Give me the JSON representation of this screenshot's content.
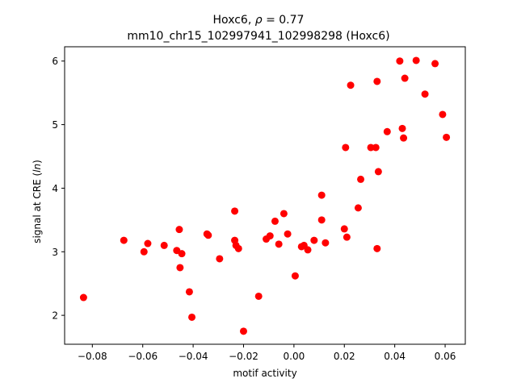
{
  "chart_data": {
    "type": "scatter",
    "title_prefix": "Hoxc6, ",
    "title_rho_symbol": "ρ",
    "title_rho_suffix": " = 0.77",
    "subtitle": "mm10_chr15_102997941_102998298 (Hoxc6)",
    "xlabel": "motif activity",
    "ylabel_prefix": "signal at CRE (",
    "ylabel_italic": "ln",
    "ylabel_suffix": ")",
    "xlim": [
      -0.091,
      0.068
    ],
    "ylim": [
      1.545,
      6.225
    ],
    "x_ticks": [
      -0.08,
      -0.06,
      -0.04,
      -0.02,
      0.0,
      0.02,
      0.04,
      0.06
    ],
    "x_tick_labels": [
      "−0.08",
      "−0.06",
      "−0.04",
      "−0.02",
      "0.00",
      "0.02",
      "0.04",
      "0.06"
    ],
    "y_ticks": [
      2,
      3,
      4,
      5,
      6
    ],
    "y_tick_labels": [
      "2",
      "3",
      "4",
      "5",
      "6"
    ],
    "grid": false,
    "legend": "none",
    "marker_color": "#ff0000",
    "x": [
      -0.0835,
      -0.0675,
      -0.0595,
      -0.058,
      -0.0515,
      -0.0465,
      -0.0455,
      -0.0452,
      -0.0445,
      -0.0415,
      -0.0405,
      -0.0345,
      -0.034,
      -0.0295,
      -0.0235,
      -0.0235,
      -0.023,
      -0.022,
      -0.02,
      -0.014,
      -0.011,
      -0.0095,
      -0.0075,
      -0.006,
      -0.004,
      -0.0025,
      0.0005,
      0.003,
      0.004,
      0.0055,
      0.008,
      0.011,
      0.011,
      0.0125,
      0.02,
      0.0205,
      0.021,
      0.0225,
      0.0255,
      0.0265,
      0.0305,
      0.0325,
      0.033,
      0.033,
      0.0335,
      0.037,
      0.042,
      0.043,
      0.0435,
      0.044,
      0.0485,
      0.052,
      0.056,
      0.059,
      0.0605
    ],
    "y": [
      2.28,
      3.18,
      3.0,
      3.13,
      3.1,
      3.02,
      3.35,
      2.75,
      2.97,
      2.37,
      1.97,
      3.28,
      3.26,
      2.89,
      3.64,
      3.18,
      3.1,
      3.05,
      1.75,
      2.3,
      3.2,
      3.25,
      3.48,
      3.12,
      3.6,
      3.28,
      2.62,
      3.08,
      3.1,
      3.03,
      3.18,
      3.89,
      3.5,
      3.14,
      3.36,
      4.64,
      3.23,
      5.62,
      3.69,
      4.14,
      4.64,
      4.64,
      5.68,
      3.05,
      4.26,
      4.89,
      6.0,
      4.94,
      4.79,
      5.73,
      6.01,
      5.48,
      5.96,
      5.16,
      4.8
    ]
  }
}
